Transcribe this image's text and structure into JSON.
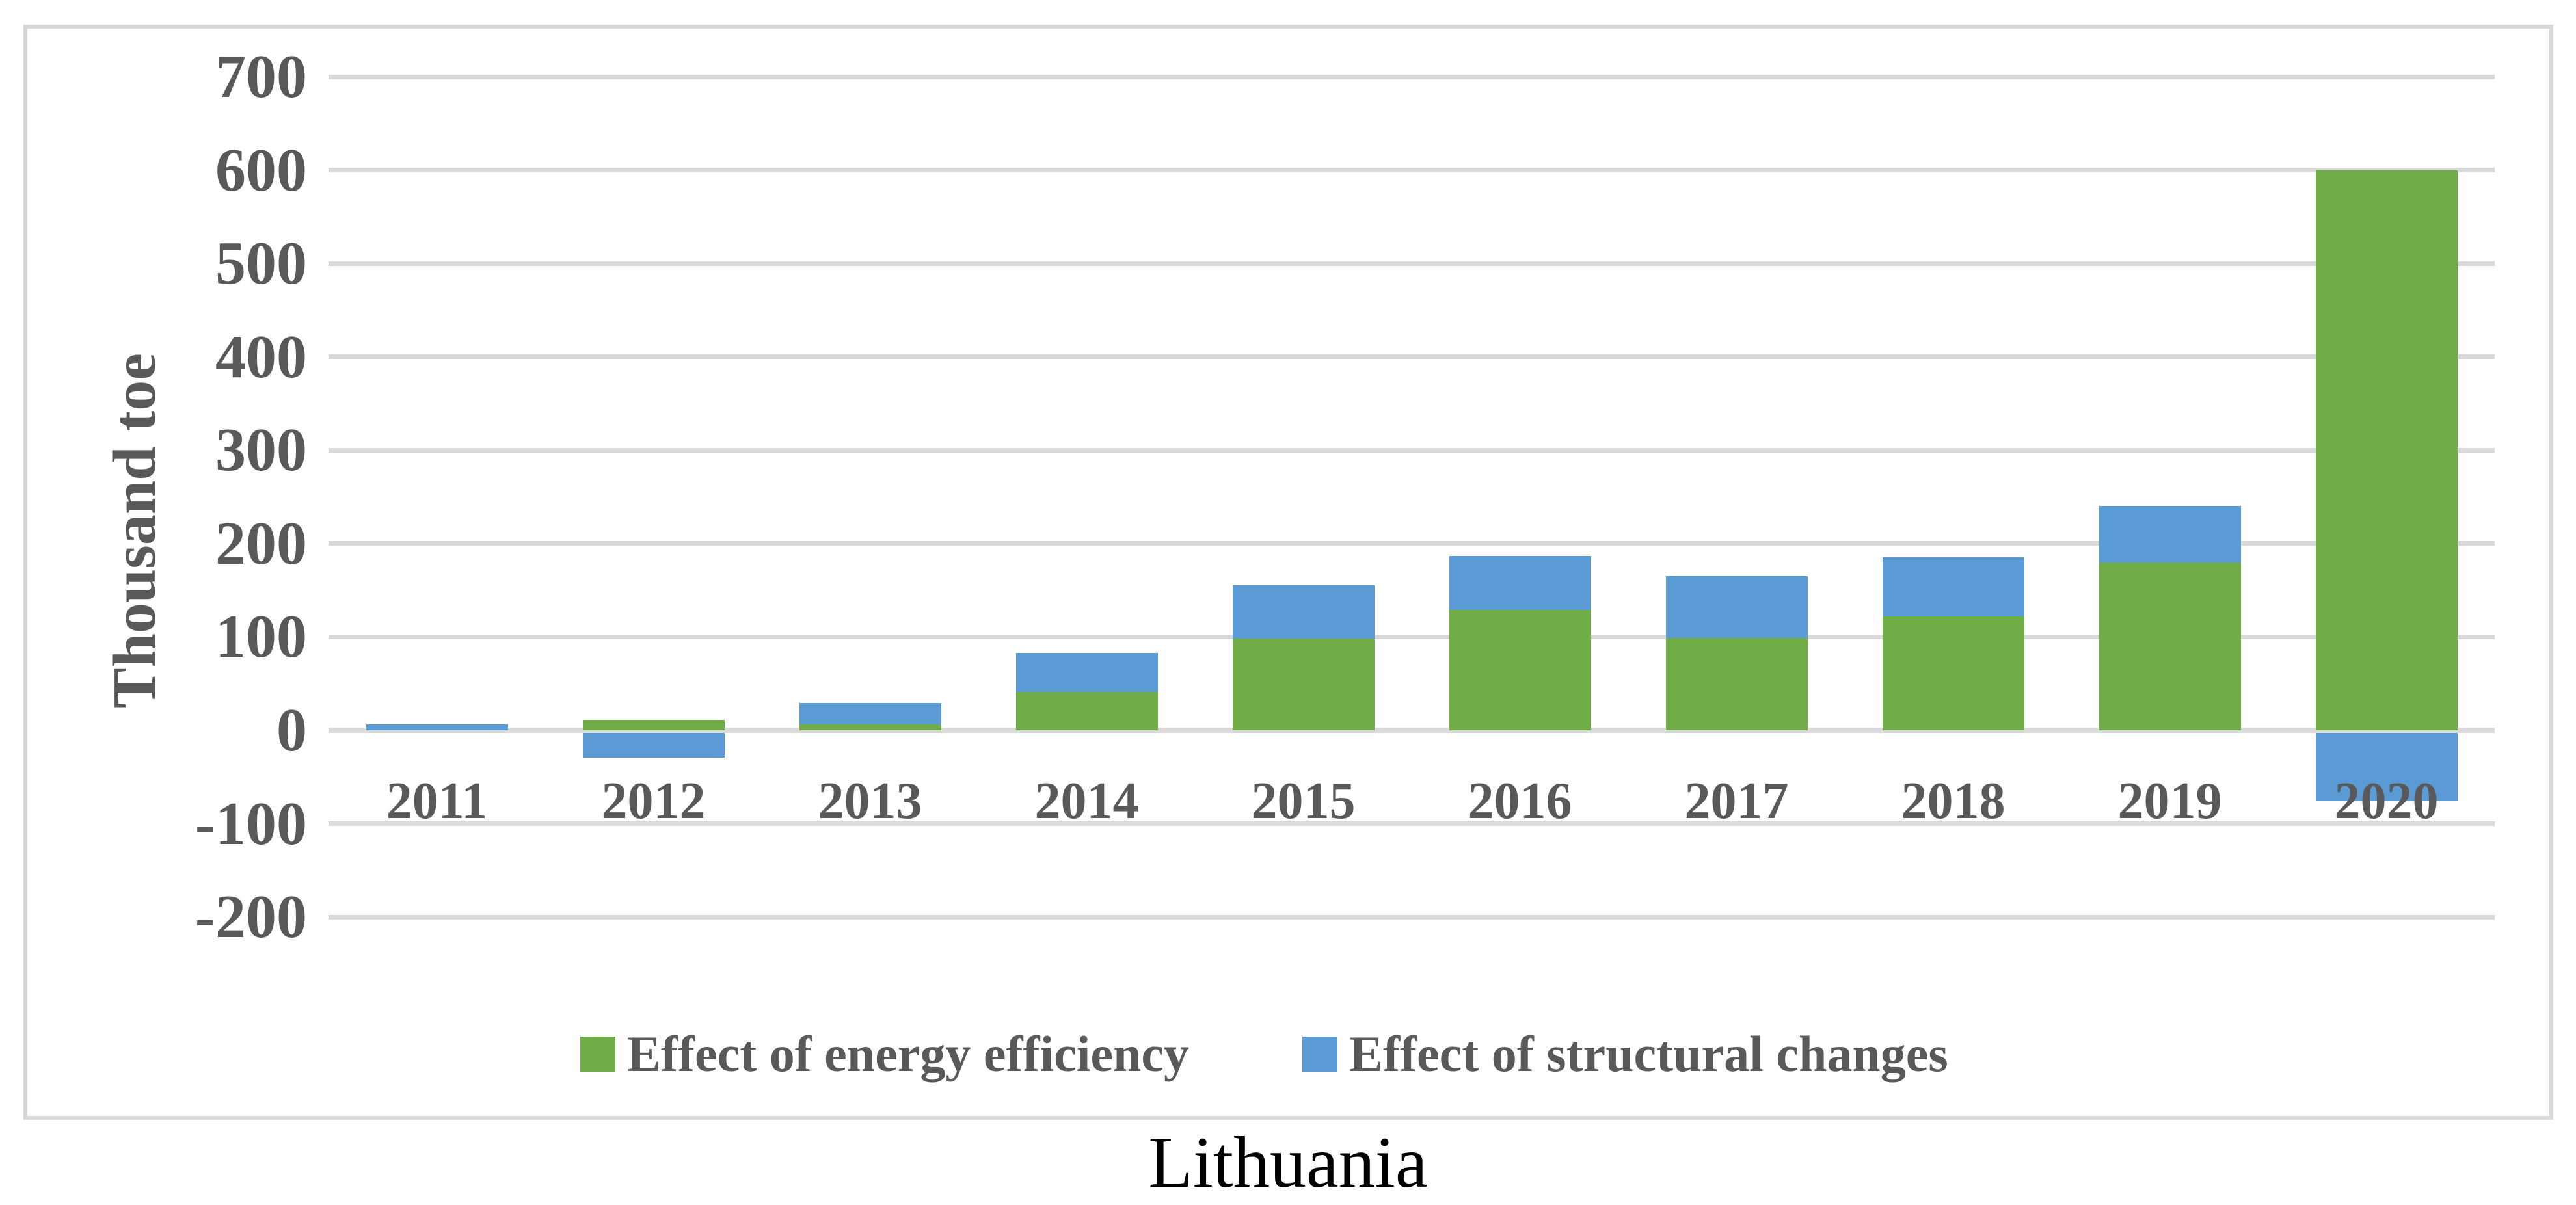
{
  "figure": {
    "caption": "Lithuania",
    "y_axis": {
      "title": "Thousand toe",
      "tick_labels": [
        "700",
        "600",
        "500",
        "400",
        "300",
        "200",
        "100",
        "0",
        "-100",
        "-200"
      ]
    },
    "x_axis": {
      "tick_labels": [
        "2011",
        "2012",
        "2013",
        "2014",
        "2015",
        "2016",
        "2017",
        "2018",
        "2019",
        "2020"
      ]
    }
  },
  "chart_data": {
    "type": "bar",
    "stacked": true,
    "title": "Lithuania",
    "xlabel": "",
    "ylabel": "Thousand toe",
    "categories": [
      "2011",
      "2012",
      "2013",
      "2014",
      "2015",
      "2016",
      "2017",
      "2018",
      "2019",
      "2020"
    ],
    "series": [
      {
        "name": "Effect of energy efficiency",
        "color": "#70AD47",
        "values": [
          0,
          11,
          6,
          41,
          98,
          129,
          99,
          122,
          180,
          600
        ]
      },
      {
        "name": "Effect of structural changes",
        "color": "#5B9BD5",
        "values": [
          6,
          -29,
          23,
          42,
          57,
          58,
          66,
          63,
          60,
          -76
        ]
      }
    ],
    "ylim": [
      -200,
      700
    ],
    "ytick_step": 100,
    "grid": true,
    "legend_position": "bottom"
  },
  "colors": {
    "grid": "#D9D9D9",
    "frame_border": "#D9D9D9",
    "axis_text": "#595959",
    "caption_text": "#000000",
    "background": "#FFFFFF"
  }
}
